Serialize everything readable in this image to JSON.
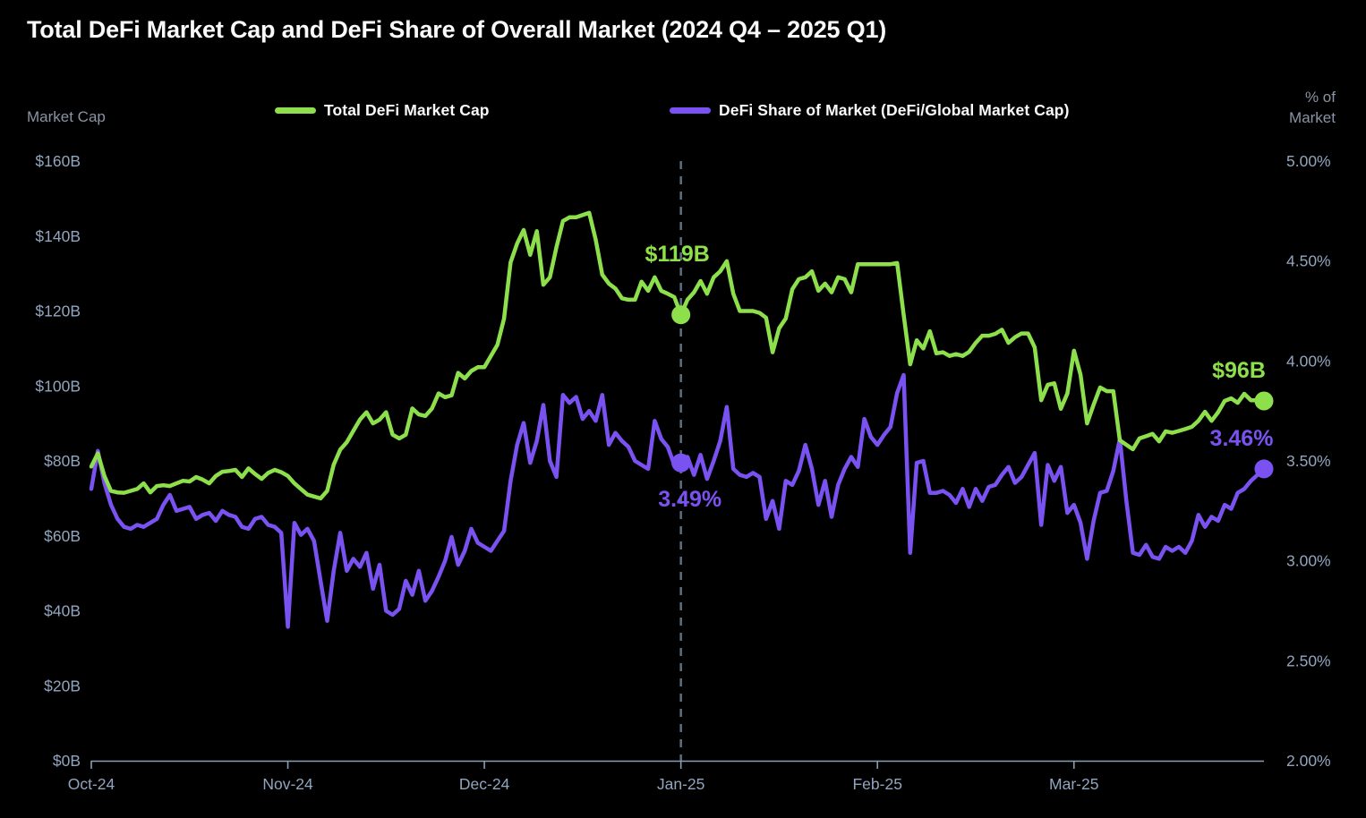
{
  "title": "Total DeFi Market Cap and DeFi Share of Overall Market (2024 Q4 – 2025 Q1)",
  "left_axis": {
    "label": "Market Cap",
    "ticks": [
      "$160B",
      "$140B",
      "$120B",
      "$100B",
      "$80B",
      "$60B",
      "$40B",
      "$20B",
      "$0B"
    ]
  },
  "right_axis": {
    "label_line1": "% of",
    "label_line2": "Market",
    "ticks": [
      "5.00%",
      "4.50%",
      "4.00%",
      "3.50%",
      "3.00%",
      "2.50%",
      "2.00%"
    ]
  },
  "x_axis": {
    "ticks": [
      "Oct-24",
      "Nov-24",
      "Dec-24",
      "Jan-25",
      "Feb-25",
      "Mar-25"
    ]
  },
  "legend": [
    {
      "label": "Total DeFi Market Cap",
      "color": "#8DE04B"
    },
    {
      "label": "DeFi Share of Market (DeFi/Global Market Cap)",
      "color": "#7B52F2"
    }
  ],
  "annotations": {
    "jan_cap": "$119B",
    "jan_share": "3.49%",
    "end_cap": "$96B",
    "end_share": "3.46%"
  },
  "colors": {
    "background": "#000000",
    "green_line": "#8DE04B",
    "purple_line": "#7B52F2",
    "axis_line": "#8B9DB4",
    "tick_text": "#92A5BF",
    "axis_title_text": "#8A94A4",
    "legend_text": "#FBFBFB",
    "title_text": "#FAFAFA",
    "reference_line": "#5E6F80"
  },
  "chart_data": {
    "type": "line",
    "title": "Total DeFi Market Cap and DeFi Share of Overall Market (2024 Q4 – 2025 Q1)",
    "x_tick_labels": [
      "Oct-24",
      "Nov-24",
      "Dec-24",
      "Jan-25",
      "Feb-25",
      "Mar-25"
    ],
    "points_per_month": 30,
    "left_ylim": [
      0,
      160
    ],
    "left_unit": "$B",
    "right_ylim": [
      2.0,
      5.0
    ],
    "right_unit": "%",
    "grid": false,
    "legend_position": "top",
    "reference_line_index": 90,
    "series": [
      {
        "name": "Total DeFi Market Cap",
        "axis": "left",
        "unit": "$B",
        "color": "#8DE04B",
        "values": [
          78.5,
          82,
          76,
          72,
          71.6,
          71.5,
          72,
          72.5,
          74,
          71.6,
          73.3,
          73.5,
          73.3,
          74,
          74.7,
          74.5,
          75.7,
          75,
          74,
          76,
          77.1,
          77.3,
          77.6,
          75.7,
          78,
          76.5,
          75.2,
          76.8,
          77.6,
          77,
          76,
          74,
          72.5,
          71,
          70.5,
          70,
          72,
          79,
          83,
          85,
          88,
          91,
          93,
          90,
          91,
          93,
          87,
          86,
          87,
          94,
          92.4,
          92,
          94,
          98,
          97,
          97.5,
          103.5,
          102,
          104,
          105,
          105,
          108,
          111,
          118,
          133,
          138,
          141.6,
          135,
          141.3,
          127,
          129,
          137,
          144,
          145,
          145,
          145.6,
          146.2,
          139,
          129.7,
          127.3,
          126,
          123.4,
          123,
          123,
          127.8,
          125.4,
          129,
          125.4,
          124.6,
          123.7,
          119,
          123,
          125,
          128,
          124.6,
          129,
          130.6,
          133.3,
          124.6,
          120,
          120,
          120,
          119.5,
          118.2,
          109,
          115.4,
          118,
          125.8,
          128.5,
          129,
          130.6,
          125.4,
          127.3,
          125,
          129,
          128.5,
          125,
          132.5,
          132.5,
          132.5,
          132.5,
          132.5,
          132.5,
          132.8,
          119,
          105.8,
          112.2,
          110,
          114.6,
          108.7,
          109,
          108,
          108.5,
          108,
          109.1,
          111.5,
          113.4,
          113.4,
          113.9,
          115,
          111.5,
          113,
          114,
          114,
          110.3,
          96.2,
          100.3,
          100.7,
          93.9,
          98,
          109.4,
          103,
          90,
          95,
          99.6,
          98.6,
          98.6,
          85.5,
          84.3,
          83.1,
          86,
          86.6,
          87.2,
          85.2,
          87.9,
          87.5,
          88,
          88.5,
          89.1,
          90.7,
          93.1,
          90.7,
          93,
          96,
          96.7,
          95.5,
          97.9,
          96.2,
          96.2,
          96
        ]
      },
      {
        "name": "DeFi Share of Market (DeFi/Global Market Cap)",
        "axis": "right",
        "unit": "%",
        "color": "#7B52F2",
        "values": [
          3.36,
          3.55,
          3.39,
          3.28,
          3.21,
          3.17,
          3.16,
          3.18,
          3.17,
          3.19,
          3.21,
          3.28,
          3.33,
          3.25,
          3.26,
          3.27,
          3.21,
          3.23,
          3.24,
          3.2,
          3.25,
          3.23,
          3.22,
          3.17,
          3.16,
          3.21,
          3.22,
          3.18,
          3.17,
          3.14,
          2.67,
          3.19,
          3.13,
          3.16,
          3.1,
          2.9,
          2.7,
          2.95,
          3.14,
          2.95,
          3.01,
          2.97,
          3.04,
          2.86,
          2.98,
          2.75,
          2.73,
          2.76,
          2.9,
          2.83,
          2.95,
          2.8,
          2.85,
          2.92,
          3.0,
          3.12,
          2.98,
          3.05,
          3.16,
          3.09,
          3.07,
          3.05,
          3.1,
          3.15,
          3.4,
          3.58,
          3.69,
          3.49,
          3.6,
          3.78,
          3.5,
          3.42,
          3.83,
          3.79,
          3.82,
          3.71,
          3.75,
          3.7,
          3.83,
          3.58,
          3.64,
          3.6,
          3.57,
          3.5,
          3.48,
          3.46,
          3.7,
          3.61,
          3.57,
          3.48,
          3.49,
          3.52,
          3.43,
          3.53,
          3.41,
          3.5,
          3.6,
          3.77,
          3.46,
          3.43,
          3.42,
          3.44,
          3.42,
          3.21,
          3.3,
          3.16,
          3.4,
          3.38,
          3.45,
          3.58,
          3.46,
          3.28,
          3.4,
          3.22,
          3.38,
          3.46,
          3.52,
          3.47,
          3.71,
          3.62,
          3.58,
          3.63,
          3.67,
          3.84,
          3.93,
          3.04,
          3.49,
          3.5,
          3.34,
          3.34,
          3.35,
          3.33,
          3.29,
          3.36,
          3.27,
          3.36,
          3.3,
          3.37,
          3.38,
          3.43,
          3.47,
          3.39,
          3.42,
          3.48,
          3.54,
          3.18,
          3.48,
          3.4,
          3.47,
          3.24,
          3.28,
          3.19,
          3.01,
          3.2,
          3.34,
          3.35,
          3.45,
          3.61,
          3.3,
          3.04,
          3.03,
          3.08,
          3.02,
          3.01,
          3.07,
          3.05,
          3.07,
          3.04,
          3.1,
          3.23,
          3.17,
          3.22,
          3.2,
          3.28,
          3.26,
          3.34,
          3.36,
          3.4,
          3.43,
          3.46
        ]
      }
    ],
    "highlight_points": [
      {
        "series": 0,
        "index": 90,
        "label": "$119B",
        "value": 119
      },
      {
        "series": 1,
        "index": 90,
        "label": "3.49%",
        "value": 3.49
      },
      {
        "series": 0,
        "index": 179,
        "label": "$96B",
        "value": 96
      },
      {
        "series": 1,
        "index": 179,
        "label": "3.46%",
        "value": 3.46
      }
    ]
  }
}
